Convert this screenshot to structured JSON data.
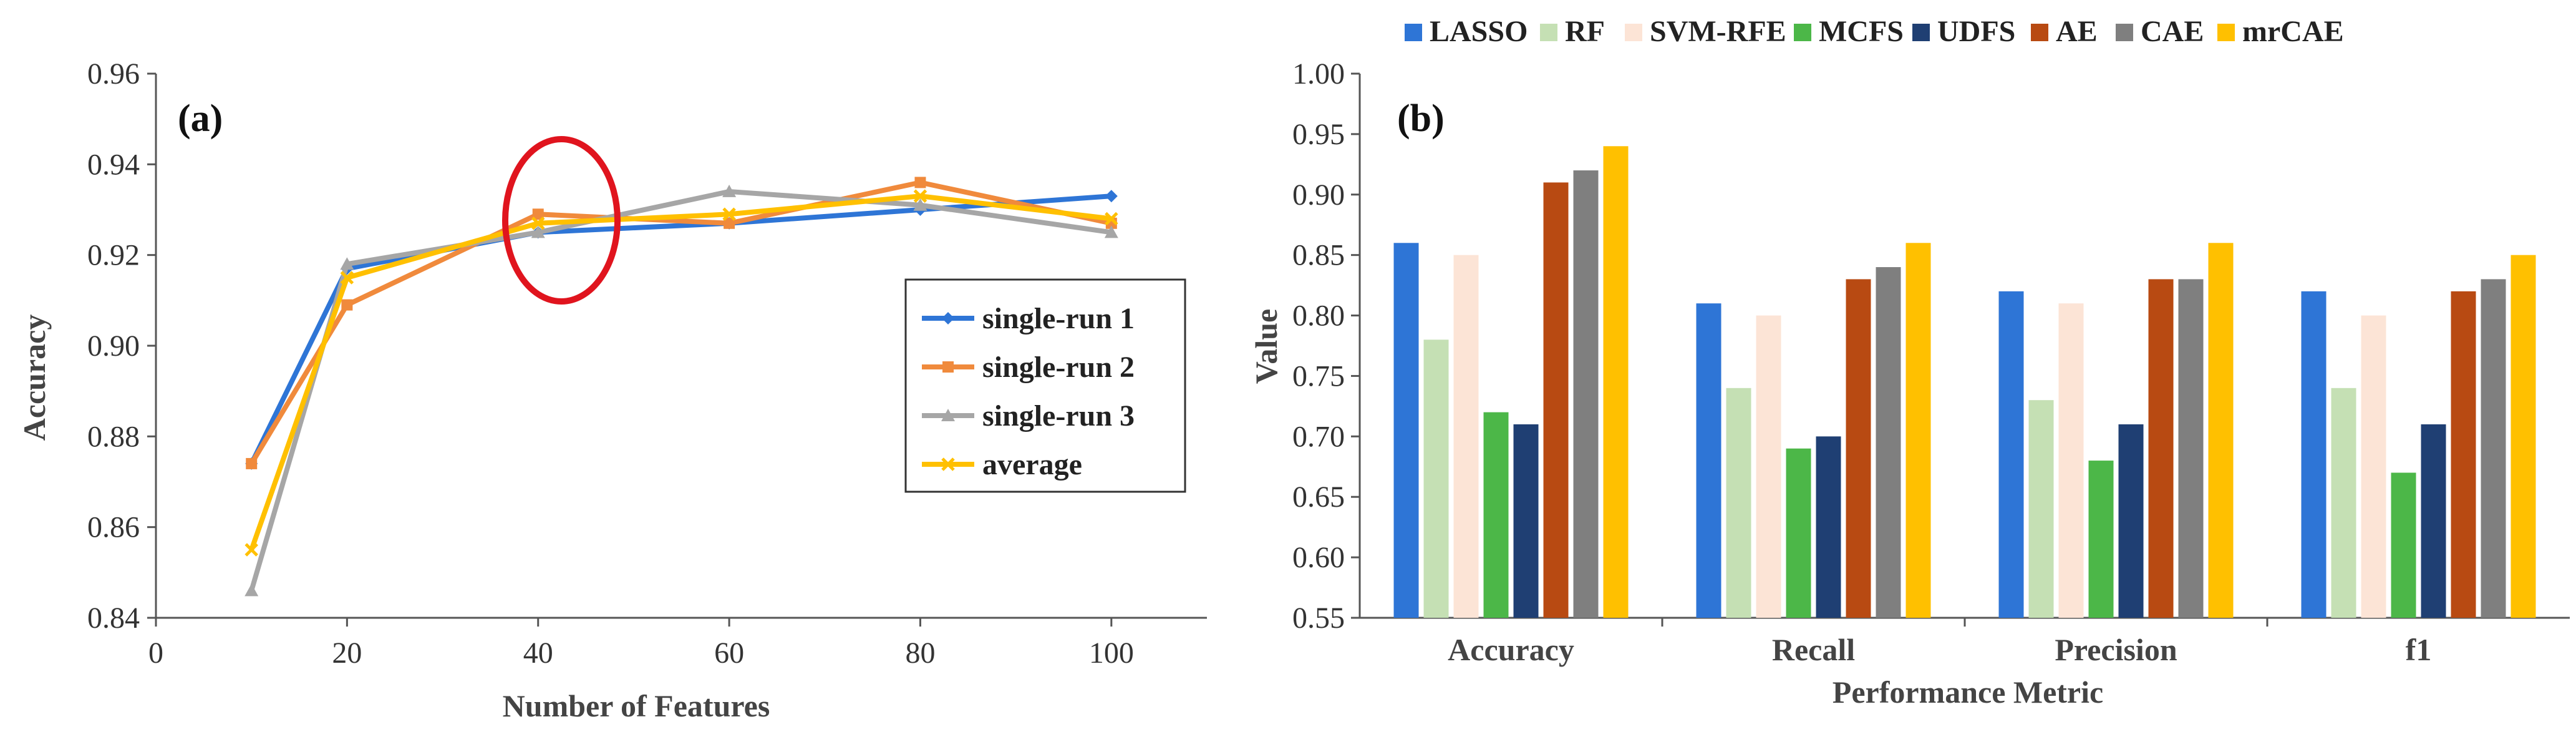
{
  "chart_data": [
    {
      "type": "line",
      "panel_label": "(a)",
      "title": "",
      "xlabel": "Number of Features",
      "ylabel": "Accuracy",
      "xlim": [
        0,
        110
      ],
      "ylim": [
        0.84,
        0.96
      ],
      "x_ticks": [
        0,
        20,
        40,
        60,
        80,
        100
      ],
      "x_tick_labels": [
        "0",
        "20",
        "40",
        "60",
        "80",
        "100"
      ],
      "y_ticks": [
        0.84,
        0.86,
        0.88,
        0.9,
        0.92,
        0.94,
        0.96
      ],
      "y_tick_labels": [
        "0.84",
        "0.86",
        "0.88",
        "0.90",
        "0.92",
        "0.94",
        "0.96"
      ],
      "grid": false,
      "legend_position": "right",
      "annotation": "red ellipse around x = 40",
      "series": [
        {
          "name": "single-run 1",
          "color": "#2e75d6",
          "marker": "diamond",
          "x": [
            10,
            20,
            40,
            60,
            80,
            100
          ],
          "y": [
            0.874,
            0.917,
            0.925,
            0.927,
            0.93,
            0.933
          ]
        },
        {
          "name": "single-run 2",
          "color": "#f08a3c",
          "marker": "square",
          "x": [
            10,
            20,
            40,
            60,
            80,
            100
          ],
          "y": [
            0.874,
            0.909,
            0.929,
            0.927,
            0.936,
            0.927
          ]
        },
        {
          "name": "single-run 3",
          "color": "#a6a6a6",
          "marker": "triangle",
          "x": [
            10,
            20,
            40,
            60,
            80,
            100
          ],
          "y": [
            0.846,
            0.918,
            0.925,
            0.934,
            0.931,
            0.925
          ]
        },
        {
          "name": "average",
          "color": "#ffc000",
          "marker": "cross",
          "x": [
            10,
            20,
            40,
            60,
            80,
            100
          ],
          "y": [
            0.855,
            0.915,
            0.927,
            0.929,
            0.933,
            0.928
          ]
        }
      ]
    },
    {
      "type": "bar",
      "panel_label": "(b)",
      "title": "",
      "xlabel": "Performance Metric",
      "ylabel": "Value",
      "ylim": [
        0.55,
        1.0
      ],
      "y_ticks": [
        0.55,
        0.6,
        0.65,
        0.7,
        0.75,
        0.8,
        0.85,
        0.9,
        0.95,
        1.0
      ],
      "y_tick_labels": [
        "0.55",
        "0.60",
        "0.65",
        "0.70",
        "0.75",
        "0.80",
        "0.85",
        "0.90",
        "0.95",
        "1.00"
      ],
      "grid": false,
      "legend_position": "top",
      "categories": [
        "Accuracy",
        "Recall",
        "Precision",
        "f1"
      ],
      "series": [
        {
          "name": "LASSO",
          "color": "#2e75d6",
          "values": [
            0.86,
            0.81,
            0.82,
            0.82
          ]
        },
        {
          "name": "RF",
          "color": "#c5e0b4",
          "values": [
            0.78,
            0.74,
            0.73,
            0.74
          ]
        },
        {
          "name": "SVM-RFE",
          "color": "#fce4d6",
          "values": [
            0.85,
            0.8,
            0.81,
            0.8
          ]
        },
        {
          "name": "MCFS",
          "color": "#4cb748",
          "values": [
            0.72,
            0.69,
            0.68,
            0.67
          ]
        },
        {
          "name": "UDFS",
          "color": "#1f3f73",
          "values": [
            0.71,
            0.7,
            0.71,
            0.71
          ]
        },
        {
          "name": "AE",
          "color": "#b84a12",
          "values": [
            0.91,
            0.83,
            0.83,
            0.82
          ]
        },
        {
          "name": "CAE",
          "color": "#7f7f7f",
          "values": [
            0.92,
            0.84,
            0.83,
            0.83
          ]
        },
        {
          "name": "mrCAE",
          "color": "#ffc000",
          "values": [
            0.94,
            0.86,
            0.86,
            0.85
          ]
        }
      ]
    }
  ]
}
